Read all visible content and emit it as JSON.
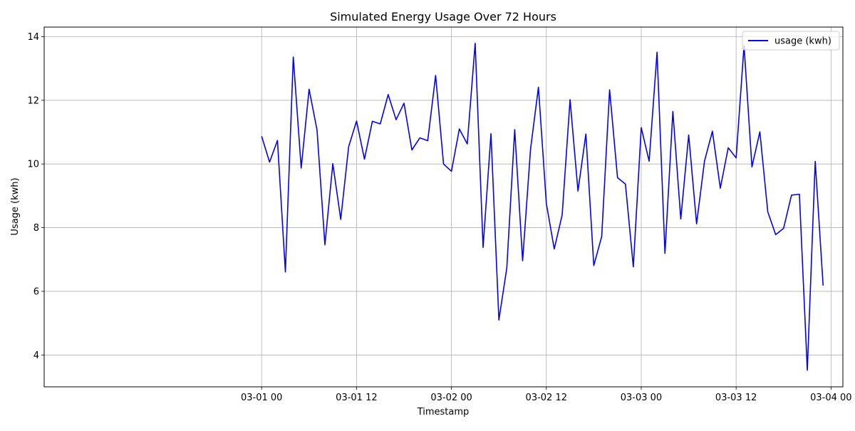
{
  "chart_data": {
    "type": "line",
    "title": "Simulated Energy Usage Over 72 Hours",
    "xlabel": "Timestamp",
    "ylabel": "Usage (kwh)",
    "x_start": "2024-03-01T00:00",
    "x_step_hours": 1,
    "xlim": [
      "2024-02-28T20:30",
      "2024-03-04T01:30"
    ],
    "ylim": [
      3.0,
      14.3
    ],
    "grid": true,
    "legend_position": "top-right",
    "x_ticks": [
      {
        "label": "03-01 00",
        "hours": 0
      },
      {
        "label": "03-01 12",
        "hours": 12
      },
      {
        "label": "03-02 00",
        "hours": 24
      },
      {
        "label": "03-02 12",
        "hours": 36
      },
      {
        "label": "03-03 00",
        "hours": 48
      },
      {
        "label": "03-03 12",
        "hours": 60
      },
      {
        "label": "03-04 00",
        "hours": 72
      }
    ],
    "y_ticks": [
      4,
      6,
      8,
      10,
      12,
      14
    ],
    "series": [
      {
        "name": "usage (kwh)",
        "color": "#0000ff",
        "values": [
          10.87,
          10.06,
          10.74,
          6.61,
          13.36,
          9.87,
          12.35,
          11.07,
          7.46,
          10.01,
          8.26,
          10.54,
          11.35,
          10.15,
          11.34,
          11.26,
          12.18,
          11.39,
          11.91,
          10.44,
          10.82,
          10.73,
          12.78,
          10.0,
          9.77,
          11.1,
          10.63,
          13.79,
          7.38,
          10.95,
          5.1,
          6.73,
          11.08,
          6.96,
          10.46,
          12.41,
          8.76,
          7.33,
          8.4,
          12.02,
          9.15,
          10.94,
          6.81,
          7.72,
          12.33,
          9.57,
          9.37,
          6.77,
          11.14,
          10.09,
          13.51,
          7.19,
          11.65,
          8.27,
          10.91,
          8.12,
          10.09,
          11.03,
          9.24,
          10.51,
          10.19,
          13.72,
          9.91,
          11.01,
          8.5,
          7.78,
          7.98,
          9.02,
          9.05,
          3.52,
          10.08,
          6.18
        ]
      }
    ]
  }
}
